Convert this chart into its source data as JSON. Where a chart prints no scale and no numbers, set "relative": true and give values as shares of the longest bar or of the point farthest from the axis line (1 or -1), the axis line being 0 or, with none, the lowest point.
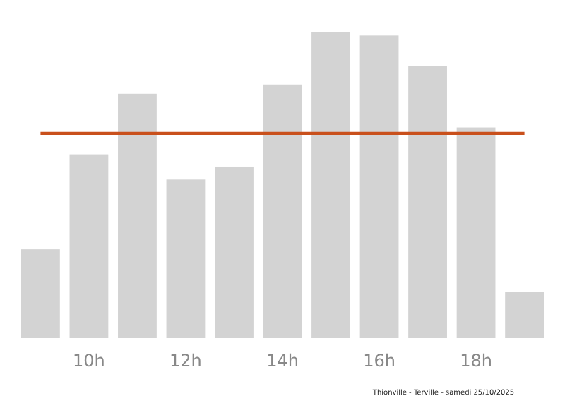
{
  "chart_data": {
    "type": "bar",
    "categories": [
      null,
      "10h",
      null,
      "12h",
      null,
      "14h",
      null,
      "16h",
      null,
      "18h",
      null
    ],
    "values": [
      0.29,
      0.6,
      0.8,
      0.52,
      0.56,
      0.83,
      1,
      0.99,
      0.89,
      0.69,
      0.15
    ],
    "color": "#d3d3d3",
    "relative": true,
    "ref_lines": [
      {
        "axis": "y",
        "value": 0.67,
        "color": "#c9501c"
      }
    ],
    "annotations": [
      "Thionville - Terville - samedi 25/10/2025"
    ]
  }
}
